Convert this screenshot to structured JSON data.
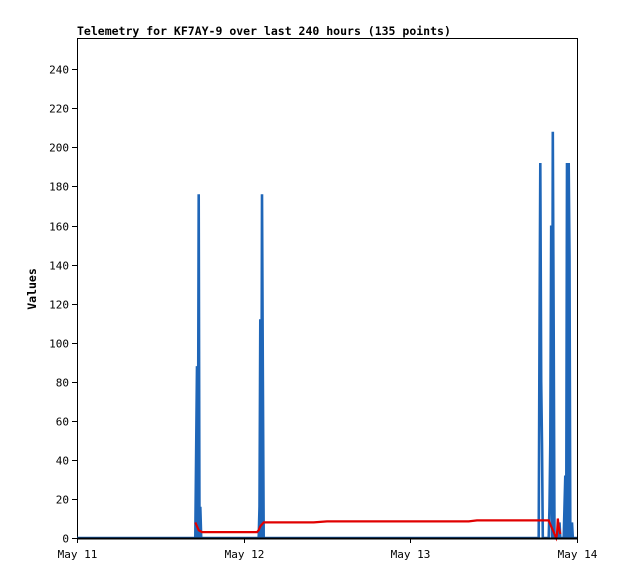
{
  "chart_data": {
    "type": "line",
    "title": "Telemetry for KF7AY-9 over last 240 hours (135 points)",
    "xlabel": "",
    "ylabel": "Values",
    "xlim": [
      "May 11",
      "May 14"
    ],
    "ylim": [
      0,
      256
    ],
    "x_ticks": [
      "May 11",
      "May 12",
      "May 13",
      "May 14"
    ],
    "y_ticks": [
      0,
      20,
      40,
      60,
      80,
      100,
      120,
      140,
      160,
      180,
      200,
      220,
      240
    ],
    "grid": false,
    "legend": "none",
    "x_unit": "days after May 11 00:00",
    "series": [
      {
        "color": "#1f66b8",
        "points": [
          [
            0.0,
            0
          ],
          [
            0.71,
            0
          ],
          [
            0.72,
            88
          ],
          [
            0.725,
            0
          ],
          [
            0.73,
            176
          ],
          [
            0.735,
            0
          ],
          [
            0.74,
            16
          ],
          [
            0.745,
            0
          ],
          [
            1.09,
            0
          ],
          [
            1.095,
            16
          ],
          [
            1.1,
            112
          ],
          [
            1.105,
            0
          ],
          [
            1.11,
            176
          ],
          [
            1.115,
            88
          ],
          [
            1.12,
            0
          ],
          [
            2.77,
            0
          ],
          [
            2.775,
            104
          ],
          [
            2.78,
            192
          ],
          [
            2.785,
            80
          ],
          [
            2.79,
            48
          ],
          [
            2.795,
            0
          ],
          [
            2.83,
            0
          ],
          [
            2.835,
            16
          ],
          [
            2.84,
            48
          ],
          [
            2.845,
            160
          ],
          [
            2.85,
            0
          ],
          [
            2.855,
            208
          ],
          [
            2.86,
            104
          ],
          [
            2.865,
            0
          ],
          [
            2.89,
            0
          ],
          [
            2.895,
            8
          ],
          [
            2.9,
            0
          ],
          [
            2.92,
            0
          ],
          [
            2.925,
            16
          ],
          [
            2.93,
            32
          ],
          [
            2.935,
            0
          ],
          [
            2.94,
            192
          ],
          [
            2.945,
            0
          ],
          [
            2.95,
            192
          ],
          [
            2.955,
            144
          ],
          [
            2.96,
            0
          ],
          [
            2.965,
            0
          ],
          [
            2.97,
            8
          ],
          [
            2.975,
            0
          ],
          [
            3.0,
            0
          ]
        ]
      },
      {
        "color": "#e00000",
        "points": [
          [
            0.71,
            8
          ],
          [
            0.72,
            6
          ],
          [
            0.73,
            4
          ],
          [
            0.75,
            3
          ],
          [
            1.05,
            3
          ],
          [
            1.08,
            3
          ],
          [
            1.09,
            4
          ],
          [
            1.1,
            6
          ],
          [
            1.12,
            8
          ],
          [
            1.42,
            8
          ],
          [
            1.5,
            8.5
          ],
          [
            2.35,
            8.5
          ],
          [
            2.4,
            9
          ],
          [
            2.8,
            9
          ],
          [
            2.83,
            9
          ],
          [
            2.84,
            7
          ],
          [
            2.85,
            5
          ],
          [
            2.86,
            3
          ],
          [
            2.87,
            1
          ],
          [
            2.875,
            0
          ],
          [
            2.88,
            2
          ],
          [
            2.885,
            10
          ],
          [
            2.89,
            6
          ],
          [
            2.9,
            2
          ]
        ]
      }
    ]
  }
}
